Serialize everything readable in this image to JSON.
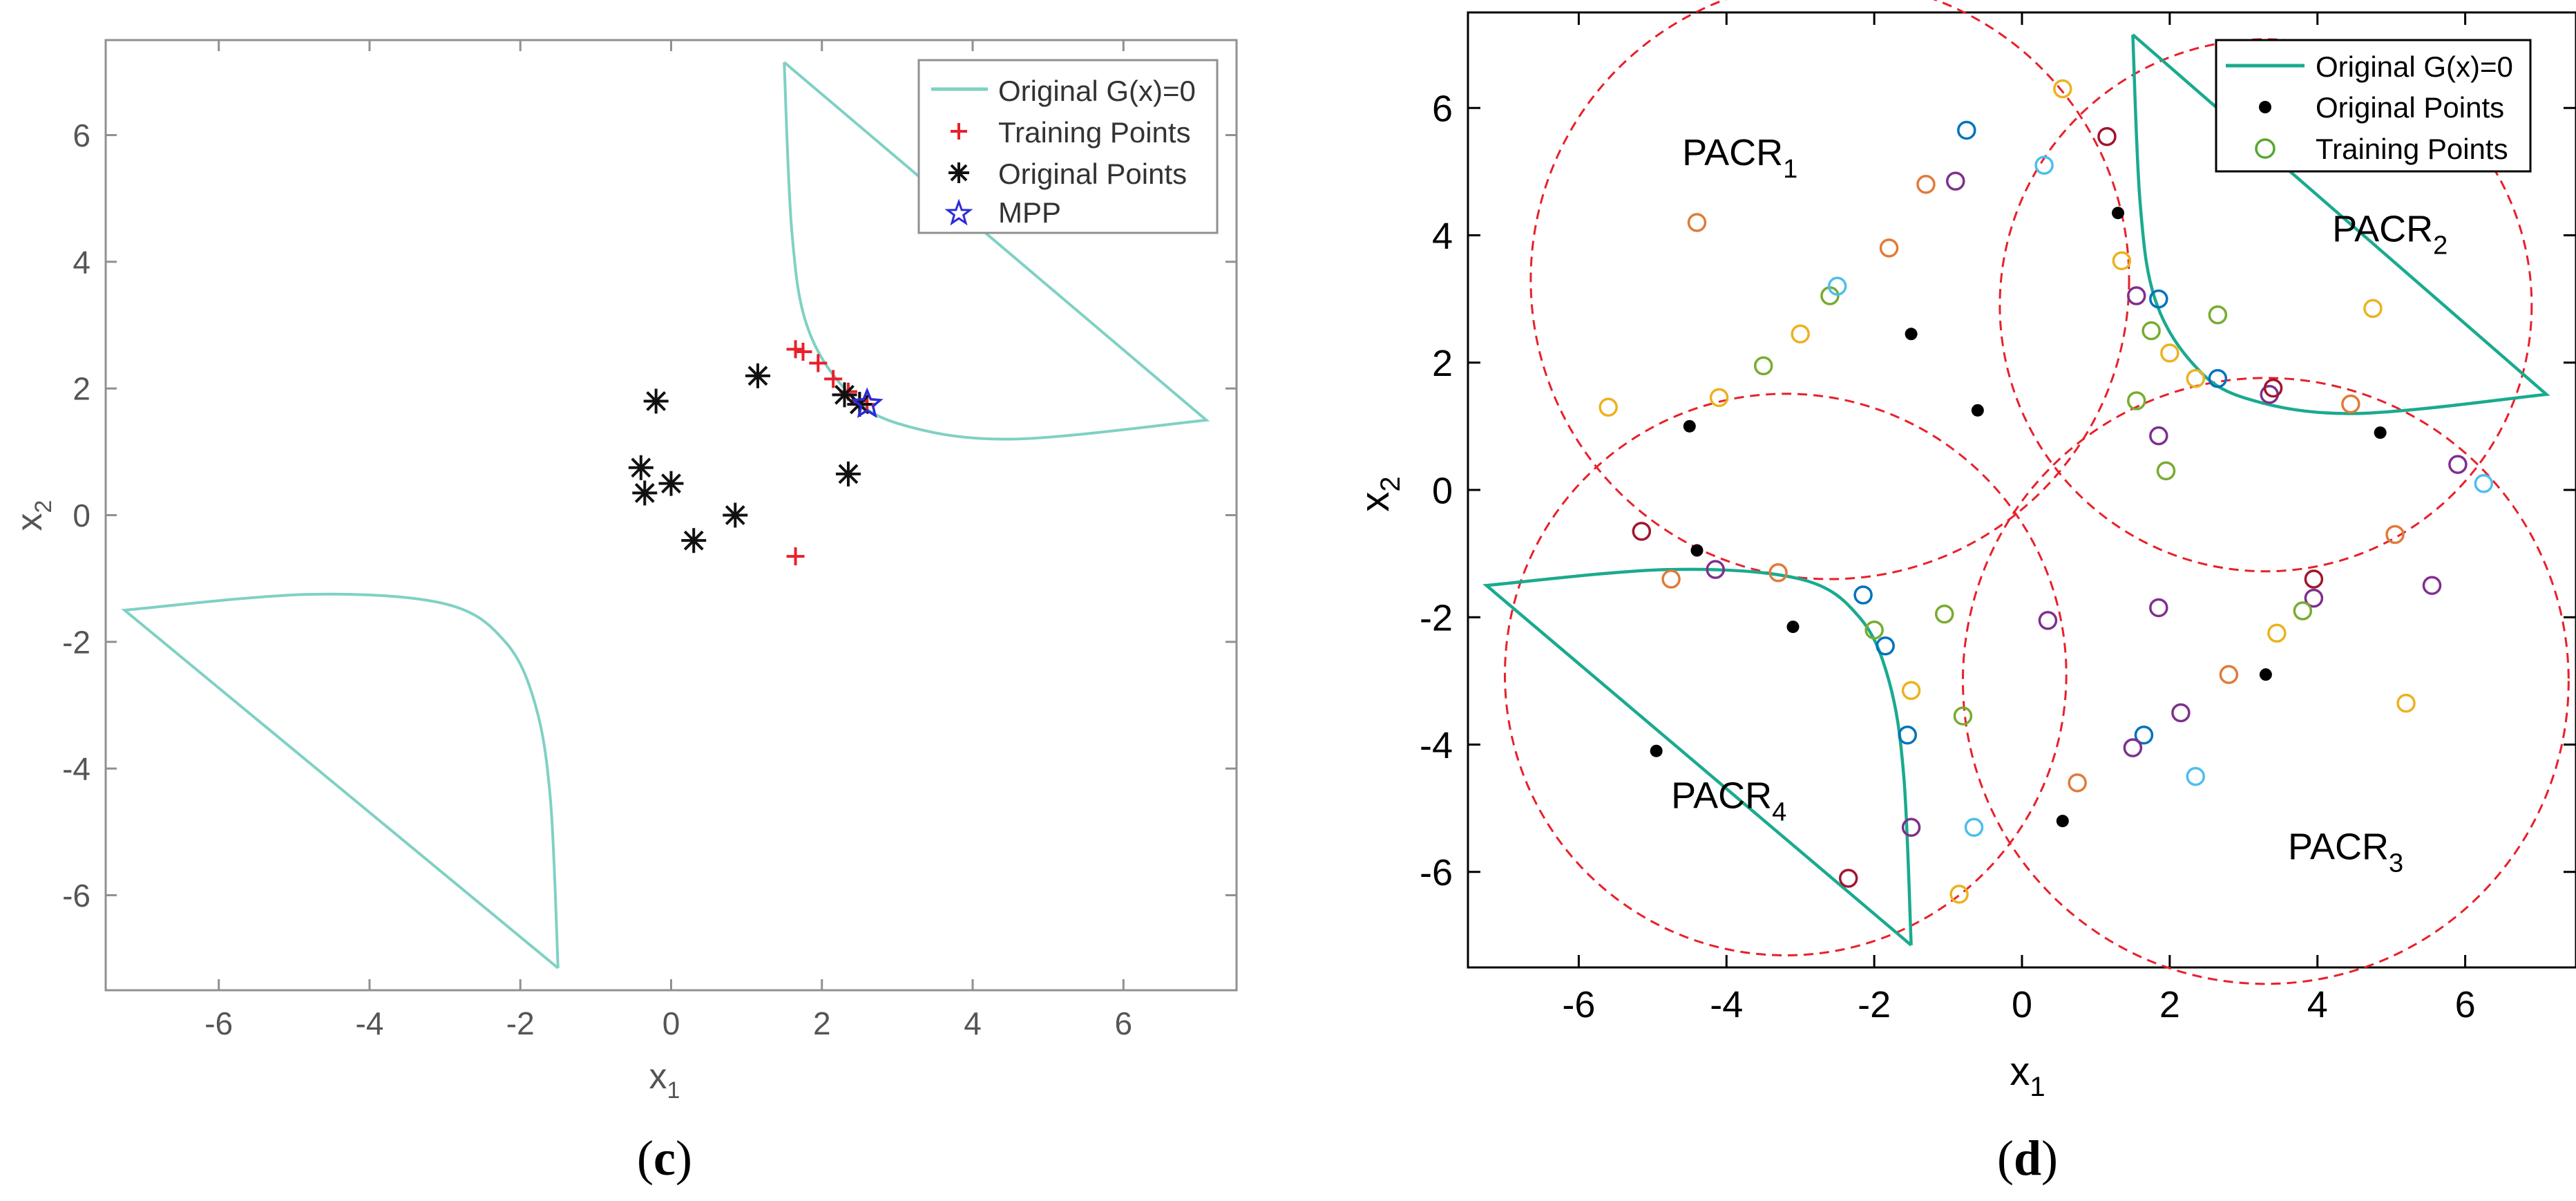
{
  "chart_data": [
    {
      "panel": "c",
      "type": "scatter",
      "caption_letter": "c",
      "xlabel_main": "x",
      "xlabel_sub": "1",
      "ylabel_main": "x",
      "ylabel_sub": "2",
      "xlim": [
        -7.5,
        7.5
      ],
      "ylim": [
        -7.5,
        7.5
      ],
      "xticks": [
        -6,
        -4,
        -2,
        0,
        2,
        4,
        6
      ],
      "yticks": [
        -6,
        -4,
        -2,
        0,
        2,
        4,
        6
      ],
      "grid": false,
      "legend_position": "top-right",
      "legend": [
        "Original G(x)=0",
        "Training Points",
        "Original Points",
        "MPP"
      ],
      "colors": {
        "curve": "#7fd1c4",
        "training": "#e8202a",
        "original": "#111111",
        "mpp": "#2b2bd6",
        "axis": "#808080",
        "text": "#555555"
      },
      "curve": [
        [
          -1.5,
          -7.15
        ],
        [
          -7.25,
          -1.5
        ],
        [
          -4.8,
          -1.25
        ],
        [
          -3.0,
          -1.4
        ],
        [
          -2.2,
          -2.0
        ],
        [
          -1.8,
          -3.0
        ],
        [
          -1.6,
          -4.5
        ],
        [
          -1.5,
          -7.15
        ]
      ],
      "curve2": [
        [
          1.5,
          7.15
        ],
        [
          7.1,
          1.5
        ],
        [
          4.5,
          1.2
        ],
        [
          3.0,
          1.45
        ],
        [
          2.3,
          2.0
        ],
        [
          1.8,
          3.0
        ],
        [
          1.6,
          4.5
        ],
        [
          1.5,
          7.15
        ]
      ],
      "series": [
        {
          "name": "Training Points",
          "marker": "plus",
          "points": [
            [
              1.65,
              2.62
            ],
            [
              1.75,
              2.58
            ],
            [
              1.95,
              2.4
            ],
            [
              2.15,
              2.15
            ],
            [
              2.35,
              1.95
            ],
            [
              2.5,
              1.8
            ],
            [
              2.6,
              1.75
            ],
            [
              1.65,
              -0.65
            ]
          ]
        },
        {
          "name": "Original Points",
          "marker": "asterisk",
          "points": [
            [
              -0.2,
              1.8
            ],
            [
              1.15,
              2.2
            ],
            [
              2.3,
              1.9
            ],
            [
              2.5,
              1.75
            ],
            [
              2.35,
              0.65
            ],
            [
              -0.4,
              0.75
            ],
            [
              -0.35,
              0.35
            ],
            [
              0.0,
              0.5
            ],
            [
              0.3,
              -0.4
            ],
            [
              0.85,
              0.0
            ]
          ]
        },
        {
          "name": "MPP",
          "marker": "star",
          "points": [
            [
              2.6,
              1.75
            ]
          ]
        }
      ]
    },
    {
      "panel": "d",
      "type": "scatter",
      "caption_letter": "d",
      "xlabel_main": "x",
      "xlabel_sub": "1",
      "ylabel_main": "x",
      "ylabel_sub": "2",
      "xlim": [
        -7.5,
        7.5
      ],
      "ylim": [
        -7.5,
        7.5
      ],
      "xticks": [
        -6,
        -4,
        -2,
        0,
        2,
        4,
        6
      ],
      "yticks": [
        -6,
        -4,
        -2,
        0,
        2,
        4,
        6
      ],
      "grid": false,
      "legend_position": "top-right",
      "legend": [
        "Original G(x)=0",
        "Original Points",
        "Training Points"
      ],
      "colors": {
        "curve": "#1aaa8f",
        "circle": "#e8202a",
        "original": "#000000",
        "training": "#55a630",
        "text": "#000000",
        "palette": [
          "#e07b39",
          "#0072bd",
          "#edb120",
          "#7e2f8e",
          "#77ac30",
          "#4dbeee",
          "#a2142f"
        ]
      },
      "curve": [
        [
          -1.5,
          -7.15
        ],
        [
          -7.25,
          -1.5
        ],
        [
          -4.8,
          -1.25
        ],
        [
          -3.0,
          -1.4
        ],
        [
          -2.2,
          -2.0
        ],
        [
          -1.8,
          -3.0
        ],
        [
          -1.6,
          -4.5
        ],
        [
          -1.5,
          -7.15
        ]
      ],
      "curve2": [
        [
          1.5,
          7.15
        ],
        [
          7.1,
          1.5
        ],
        [
          4.5,
          1.2
        ],
        [
          3.0,
          1.45
        ],
        [
          2.3,
          2.0
        ],
        [
          1.8,
          3.0
        ],
        [
          1.6,
          4.5
        ],
        [
          1.5,
          7.15
        ]
      ],
      "regions": [
        {
          "name": "PACR",
          "sub": "1",
          "center": [
            -2.6,
            3.3
          ],
          "radius": 4.05,
          "label_at": [
            -4.6,
            5.1
          ]
        },
        {
          "name": "PACR",
          "sub": "2",
          "center": [
            3.3,
            2.9
          ],
          "radius": 3.6,
          "label_at": [
            4.2,
            3.9
          ]
        },
        {
          "name": "PACR",
          "sub": "3",
          "center": [
            3.3,
            -3.0
          ],
          "radius": 4.1,
          "label_at": [
            3.6,
            -5.8
          ]
        },
        {
          "name": "PACR",
          "sub": "4",
          "center": [
            -3.2,
            -2.9
          ],
          "radius": 3.8,
          "label_at": [
            -4.75,
            -5.0
          ]
        }
      ],
      "series": [
        {
          "name": "Original Points",
          "marker": "dot",
          "points": [
            [
              1.3,
              4.35
            ],
            [
              -1.5,
              2.45
            ],
            [
              -0.6,
              1.25
            ],
            [
              4.85,
              0.9
            ],
            [
              -4.5,
              1.0
            ],
            [
              -4.4,
              -0.95
            ],
            [
              -3.1,
              -2.15
            ],
            [
              -4.95,
              -4.1
            ],
            [
              3.3,
              -2.9
            ],
            [
              0.55,
              -5.2
            ]
          ]
        },
        {
          "name": "Training Points",
          "marker": "ring",
          "points": [
            [
              -5.6,
              1.3,
              2
            ],
            [
              -4.4,
              4.2,
              0
            ],
            [
              -4.1,
              1.45,
              2
            ],
            [
              -3.5,
              1.95,
              4
            ],
            [
              -3.0,
              2.45,
              2
            ],
            [
              -2.6,
              3.05,
              4
            ],
            [
              -2.5,
              3.2,
              5
            ],
            [
              -1.8,
              3.8,
              0
            ],
            [
              -1.3,
              4.8,
              0
            ],
            [
              -0.9,
              4.85,
              3
            ],
            [
              -0.75,
              5.65,
              1
            ],
            [
              0.3,
              5.1,
              5
            ],
            [
              0.55,
              6.3,
              2
            ],
            [
              1.15,
              5.55,
              6
            ],
            [
              1.35,
              3.6,
              2
            ],
            [
              1.55,
              3.05,
              3
            ],
            [
              1.75,
              2.5,
              4
            ],
            [
              1.85,
              3.0,
              1
            ],
            [
              2.0,
              2.15,
              2
            ],
            [
              2.35,
              1.75,
              2
            ],
            [
              2.65,
              2.75,
              4
            ],
            [
              2.65,
              1.75,
              1
            ],
            [
              1.55,
              1.4,
              4
            ],
            [
              1.85,
              0.85,
              3
            ],
            [
              1.95,
              0.3,
              4
            ],
            [
              3.35,
              1.5,
              3
            ],
            [
              3.4,
              1.6,
              6
            ],
            [
              4.45,
              1.35,
              0
            ],
            [
              4.75,
              2.85,
              2
            ],
            [
              5.9,
              0.4,
              3
            ],
            [
              6.25,
              0.1,
              5
            ],
            [
              5.05,
              -0.7,
              0
            ],
            [
              3.95,
              -1.4,
              6
            ],
            [
              3.95,
              -1.7,
              3
            ],
            [
              3.8,
              -1.9,
              4
            ],
            [
              3.45,
              -2.25,
              2
            ],
            [
              5.55,
              -1.5,
              3
            ],
            [
              5.2,
              -3.35,
              2
            ],
            [
              2.8,
              -2.9,
              0
            ],
            [
              2.15,
              -3.5,
              3
            ],
            [
              1.85,
              -1.85,
              3
            ],
            [
              1.65,
              -3.85,
              1
            ],
            [
              1.5,
              -4.05,
              3
            ],
            [
              2.35,
              -4.5,
              5
            ],
            [
              0.75,
              -4.6,
              0
            ],
            [
              0.35,
              -2.05,
              3
            ],
            [
              -1.05,
              -1.95,
              4
            ],
            [
              -0.8,
              -3.55,
              4
            ],
            [
              -0.65,
              -5.3,
              5
            ],
            [
              -0.85,
              -6.35,
              2
            ],
            [
              -1.5,
              -3.15,
              2
            ],
            [
              -1.55,
              -3.85,
              1
            ],
            [
              -1.5,
              -5.3,
              3
            ],
            [
              -1.85,
              -2.45,
              1
            ],
            [
              -2.0,
              -2.2,
              4
            ],
            [
              -2.35,
              -6.1,
              6
            ],
            [
              -2.15,
              -1.65,
              1
            ],
            [
              -3.3,
              -1.3,
              0
            ],
            [
              -4.15,
              -1.25,
              3
            ],
            [
              -4.75,
              -1.4,
              0
            ],
            [
              -5.15,
              -0.65,
              6
            ]
          ]
        }
      ]
    }
  ]
}
